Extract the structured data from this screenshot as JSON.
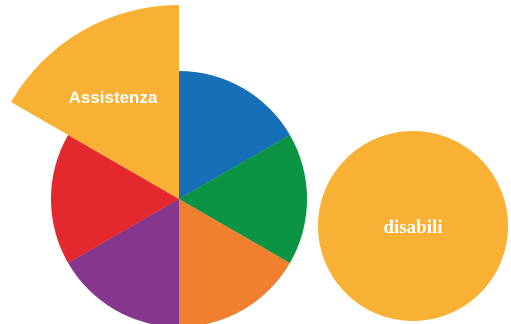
{
  "graphic": {
    "segments": [
      {
        "id": "blue",
        "color": "#1570b8"
      },
      {
        "id": "green",
        "color": "#0a9444"
      },
      {
        "id": "orange",
        "color": "#f07f2f"
      },
      {
        "id": "purple",
        "color": "#85378e"
      },
      {
        "id": "red",
        "color": "#e3282e"
      },
      {
        "id": "yellow",
        "color": "#f8b134",
        "label": "Assistenza",
        "exploded": true
      }
    ],
    "circle": {
      "color": "#f8b134",
      "label": "disabili"
    }
  }
}
